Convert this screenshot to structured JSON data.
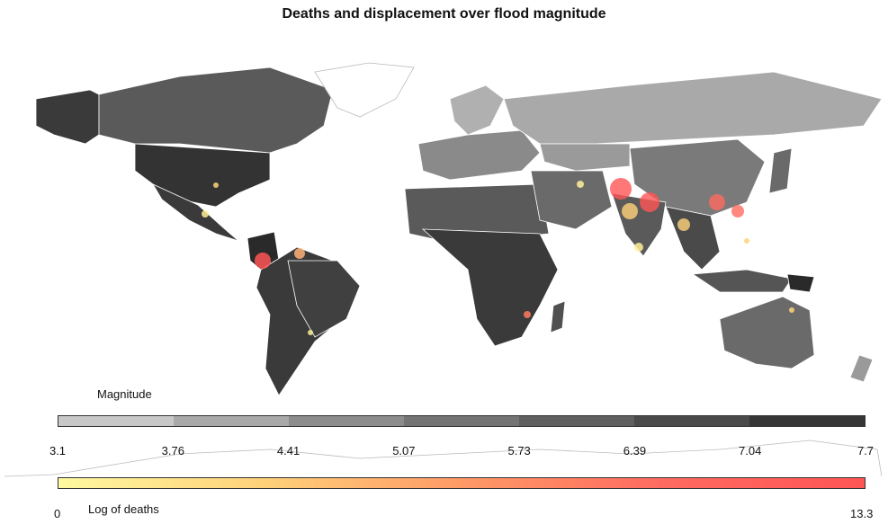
{
  "title": "Deaths and displacement over flood magnitude",
  "magnitude_legend": {
    "label": "Magnitude",
    "ticks": [
      "3.1",
      "3.76",
      "4.41",
      "5.07",
      "5.73",
      "6.39",
      "7.04",
      "7.7"
    ],
    "colors": [
      "#c8c8c8",
      "#a9a9a9",
      "#8c8c8c",
      "#747474",
      "#5f5f5f",
      "#4a4a4a",
      "#363636"
    ]
  },
  "deaths_legend": {
    "label": "Log of deaths",
    "min": "0",
    "max": "13.3",
    "gradient": [
      "#fff9a0",
      "#ffd27a",
      "#ff9a66",
      "#ff6a60",
      "#ff5555"
    ]
  }
}
